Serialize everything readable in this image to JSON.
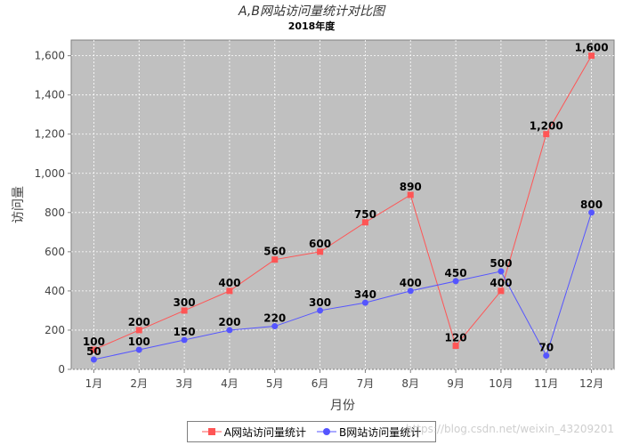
{
  "watermark": "https://blog.csdn.net/weixin_43209201",
  "chart_data": {
    "type": "line",
    "title": "A,B网站访问量统计对比图",
    "subtitle": "2018年度",
    "xlabel": "月份",
    "ylabel": "访问量",
    "categories": [
      "1月",
      "2月",
      "3月",
      "4月",
      "5月",
      "6月",
      "7月",
      "8月",
      "9月",
      "10月",
      "11月",
      "12月"
    ],
    "series": [
      {
        "name": "A网站访问量统计",
        "values": [
          100,
          200,
          300,
          400,
          560,
          600,
          750,
          890,
          120,
          400,
          1200,
          1600
        ],
        "color": "#ff5555",
        "marker": "square"
      },
      {
        "name": "B网站访问量统计",
        "values": [
          50,
          100,
          150,
          200,
          220,
          300,
          340,
          400,
          450,
          500,
          70,
          800
        ],
        "color": "#5555ff",
        "marker": "circle"
      }
    ],
    "ylim": [
      0,
      1680
    ],
    "yticks": [
      0,
      200,
      400,
      600,
      800,
      1000,
      1200,
      1400,
      1600
    ],
    "ytick_labels": [
      "0",
      "200",
      "400",
      "600",
      "800",
      "1,000",
      "1,200",
      "1,400",
      "1,600"
    ],
    "data_labels": true,
    "grid": true,
    "legend": "bottom",
    "plot_background": "#c0c0c0"
  }
}
